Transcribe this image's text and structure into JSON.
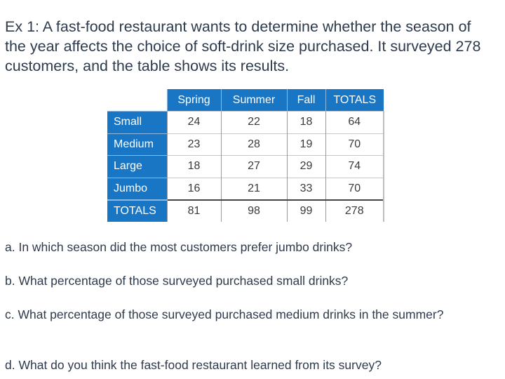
{
  "intro": "Ex 1: A fast-food restaurant wants to determine whether the season of the year affects the choice of soft-drink size purchased. It surveyed 278 customers, and the table shows its results.",
  "table": {
    "columns": [
      "Spring",
      "Summer",
      "Fall",
      "TOTALS"
    ],
    "rows": [
      {
        "label": "Small",
        "values": [
          "24",
          "22",
          "18",
          "64"
        ]
      },
      {
        "label": "Medium",
        "values": [
          "23",
          "28",
          "19",
          "70"
        ]
      },
      {
        "label": "Large",
        "values": [
          "18",
          "27",
          "29",
          "74"
        ]
      },
      {
        "label": "Jumbo",
        "values": [
          "16",
          "21",
          "33",
          "70"
        ]
      },
      {
        "label": "TOTALS",
        "values": [
          "81",
          "98",
          "99",
          "278"
        ]
      }
    ]
  },
  "questions": {
    "a": "a. In which season did the most customers prefer jumbo drinks?",
    "b": "b. What percentage of those surveyed purchased small drinks?",
    "c": "c. What percentage of those surveyed purchased medium drinks in the summer?",
    "d": "d. What do you think the fast-food restaurant learned from its survey?"
  },
  "colors": {
    "header_fill": "#1976c4",
    "text": "#2e3b4c"
  }
}
